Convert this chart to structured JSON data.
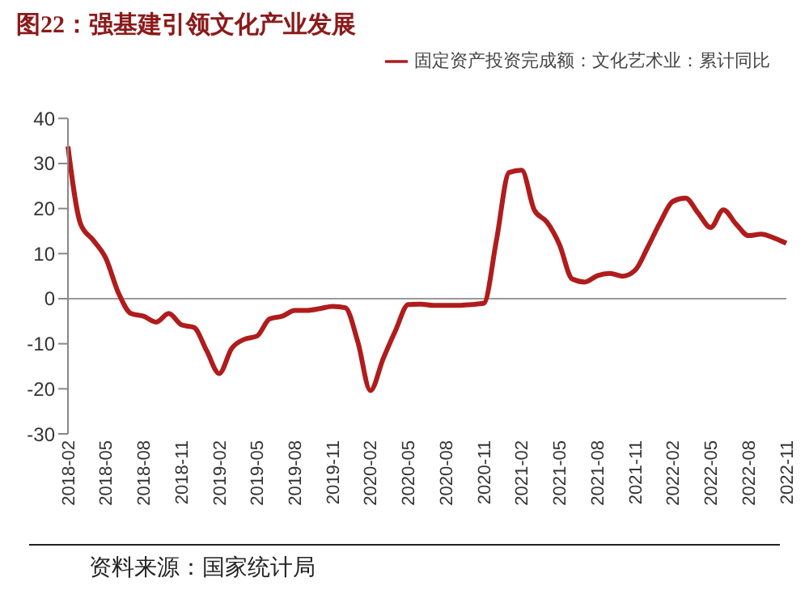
{
  "chart_data": {
    "type": "line",
    "title": "图22：强基建引领文化产业发展",
    "categories": [
      "2018-02",
      null,
      null,
      "2018-05",
      null,
      null,
      "2018-08",
      null,
      null,
      "2018-11",
      null,
      null,
      "2019-02",
      null,
      null,
      "2019-05",
      null,
      null,
      "2019-08",
      null,
      null,
      "2019-11",
      null,
      null,
      "2020-02",
      null,
      null,
      "2020-05",
      null,
      null,
      "2020-08",
      null,
      null,
      "2020-11",
      null,
      null,
      "2021-02",
      null,
      null,
      "2021-05",
      null,
      null,
      "2021-08",
      null,
      null,
      "2021-11",
      null,
      null,
      "2022-02",
      null,
      null,
      "2022-05",
      null,
      null,
      "2022-08",
      null,
      null,
      "2022-11"
    ],
    "series": [
      {
        "name": "固定资产投资完成额：文化艺术业：累计同比",
        "color": "#b01c1c",
        "values": [
          33.8,
          16.6,
          13,
          9,
          1.3,
          -3.3,
          -3.9,
          -5.2,
          -3.3,
          -5.8,
          -6.4,
          -11.5,
          -16.6,
          -11,
          -9,
          -8.3,
          -4.5,
          -3.9,
          -2.6,
          -2.6,
          -2.2,
          -1.7,
          -2,
          -9.6,
          -20.4,
          -13.4,
          -7,
          -1.3,
          -1.2,
          -1.5,
          -1.5,
          -1.5,
          -1.3,
          -1,
          13,
          28,
          28.5,
          19.7,
          17,
          12,
          4.4,
          3.7,
          5.1,
          5.6,
          5,
          6.3,
          11.4,
          17,
          21.6,
          22.3,
          19,
          15.8,
          19.7,
          16.6,
          14,
          14.3,
          13.5,
          12.3
        ]
      }
    ],
    "ylim": [
      -30,
      40
    ],
    "yticks": [
      -30,
      -20,
      -10,
      0,
      10,
      20,
      30,
      40
    ],
    "ref_lines": [
      {
        "axis": "y",
        "value": 0,
        "color": "#999999"
      }
    ],
    "grid": false,
    "legend": "top right",
    "marker": "none",
    "line_style": "solid",
    "annotations": [
      "资料来源：国家统计局"
    ]
  }
}
